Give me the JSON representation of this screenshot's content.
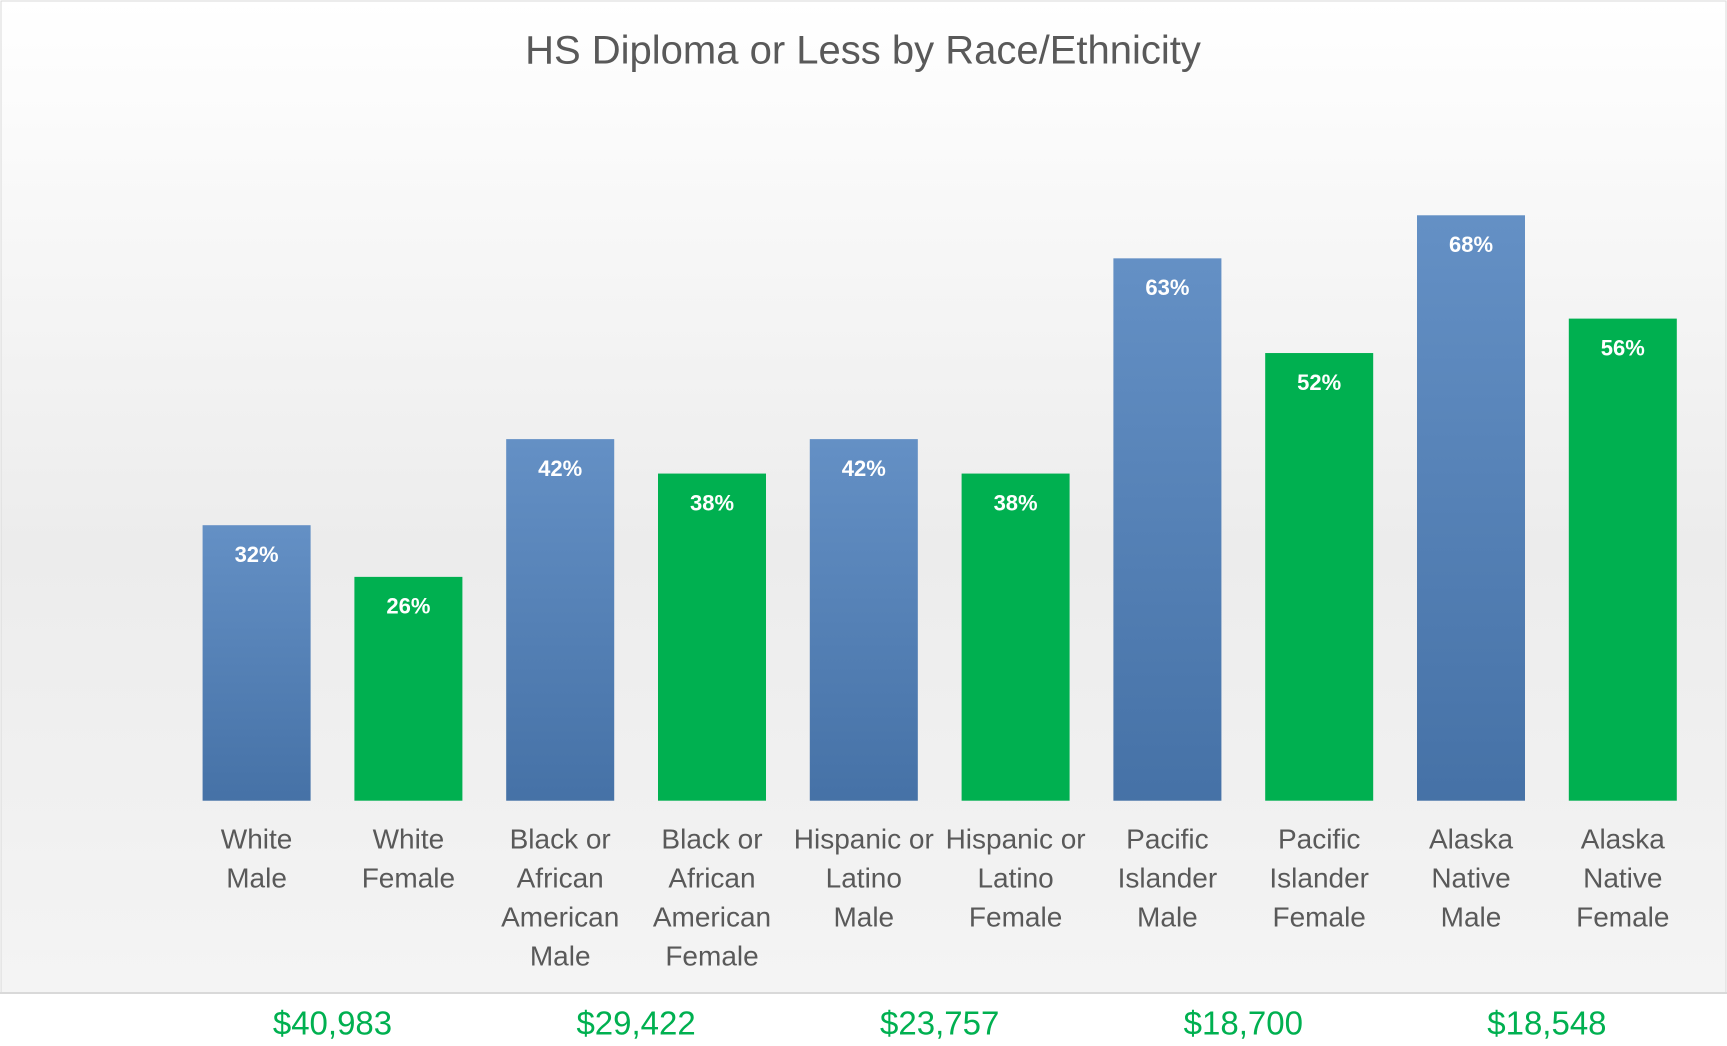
{
  "chart_data": {
    "type": "bar",
    "title": "HS Diploma or Less by Race/Ethnicity",
    "categories": [
      [
        "White",
        "Male"
      ],
      [
        "White",
        "Female"
      ],
      [
        "Black or",
        "African",
        "American",
        "Male"
      ],
      [
        "Black or",
        "African",
        "American",
        "Female"
      ],
      [
        "Hispanic or",
        "Latino",
        "Male"
      ],
      [
        "Hispanic or",
        "Latino",
        "Female"
      ],
      [
        "Pacific",
        "Islander",
        "Male"
      ],
      [
        "Pacific",
        "Islander",
        "Female"
      ],
      [
        "Alaska",
        "Native",
        "Male"
      ],
      [
        "Alaska",
        "Native",
        "Female"
      ]
    ],
    "values": [
      32,
      26,
      42,
      38,
      42,
      38,
      63,
      52,
      68,
      56
    ],
    "value_labels": [
      "32%",
      "26%",
      "42%",
      "38%",
      "42%",
      "38%",
      "63%",
      "52%",
      "68%",
      "56%"
    ],
    "colors": [
      "#4f81bd",
      "#00b050",
      "#4f81bd",
      "#00b050",
      "#4f81bd",
      "#00b050",
      "#4f81bd",
      "#00b050",
      "#4f81bd",
      "#00b050"
    ],
    "ylim": [
      0,
      80
    ],
    "annotations": [
      "$40,983",
      "$29,422",
      "$23,757",
      "$18,700",
      "$18,548"
    ],
    "annotation_color": "#00b050"
  }
}
